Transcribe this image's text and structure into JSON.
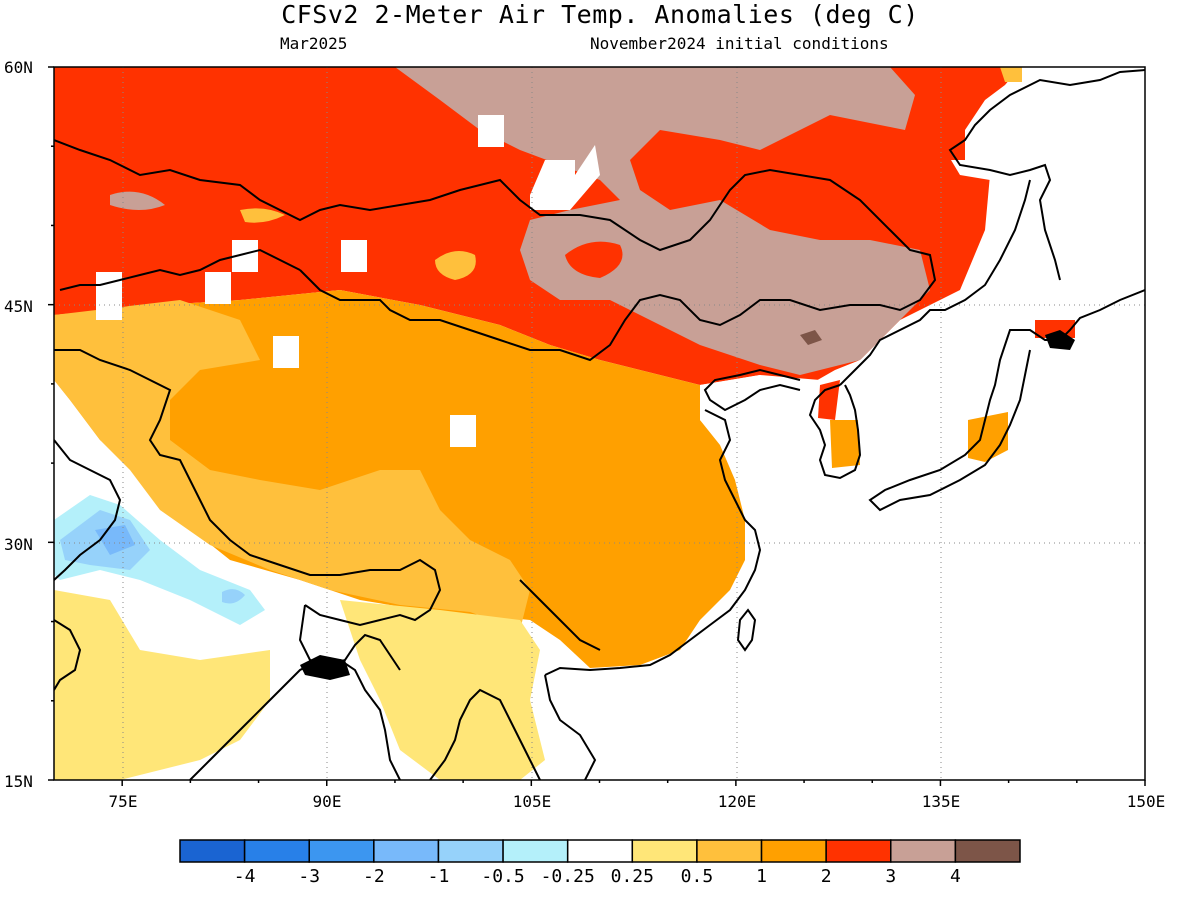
{
  "title": "CFSv2 2-Meter Air Temp. Anomalies (deg C)",
  "valid_month": "Mar2025",
  "init_conditions": "November2024 initial conditions",
  "map": {
    "lon_range": [
      70,
      150
    ],
    "lat_range": [
      15,
      60
    ],
    "lon_ticks": [
      "75E",
      "90E",
      "105E",
      "120E",
      "135E",
      "150E"
    ],
    "lat_ticks": [
      "60N",
      "45N",
      "30N",
      "15N"
    ],
    "gridlines": "dotted"
  },
  "colorbar": {
    "labels": [
      "-4",
      "-3",
      "-2",
      "-1",
      "-0.5",
      "-0.25",
      "0.25",
      "0.5",
      "1",
      "2",
      "3",
      "4"
    ],
    "colors": [
      "#1a64d2",
      "#2880e8",
      "#3c96f0",
      "#78b9fa",
      "#96d2fa",
      "#b4f0fa",
      "#ffffff",
      "#ffe678",
      "#ffc03c",
      "#ffa000",
      "#ff3200",
      "#c8a096",
      "#7d5548"
    ]
  }
}
